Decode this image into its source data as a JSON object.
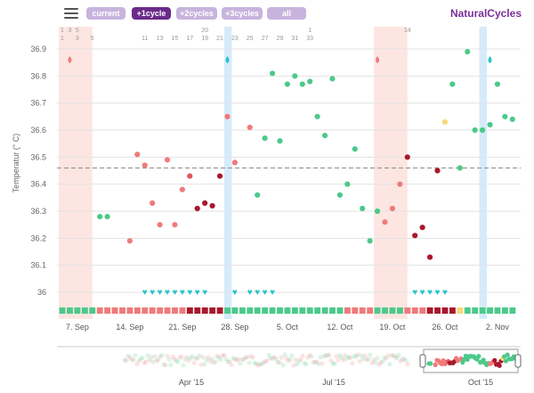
{
  "toolbar": {
    "menu_icon": "hamburger-menu-icon",
    "views": [
      {
        "label": "current",
        "active": false
      },
      {
        "label": "+1cycle",
        "active": true
      },
      {
        "label": "+2cycles",
        "active": false
      },
      {
        "label": "+3cycles",
        "active": false
      },
      {
        "label": "all",
        "active": false
      }
    ],
    "brand": "NaturalCycles"
  },
  "colors": {
    "green": "#4cc98a",
    "red_light": "#f07a7a",
    "red_mid": "#e0555f",
    "red_dark": "#a8182c",
    "teal": "#29c4cc",
    "yellow": "#f5d97a",
    "period_band": "#fde6e2",
    "ovulation_band": "#d6ebfa",
    "brand": "#7a2f9a"
  },
  "chart_data": {
    "type": "scatter",
    "ylabel": "Temperatur (° C)",
    "ylim": [
      35.95,
      36.95
    ],
    "yticks": [
      "36.9",
      "36.8",
      "36.7",
      "36.6",
      "36.5",
      "36.4",
      "36.3",
      "36.2",
      "36.1",
      "36"
    ],
    "threshold": 36.46,
    "day_count": 60,
    "cycle_days_top": [
      "1",
      "3",
      "5",
      "",
      "",
      "",
      "",
      "",
      "",
      "",
      "",
      "",
      "",
      "",
      "",
      "",
      "",
      "",
      "",
      "20",
      "",
      "",
      "",
      "",
      "",
      "",
      "",
      "",
      "",
      "",
      "",
      "",
      "",
      "1",
      "",
      "",
      "",
      "",
      "",
      "",
      "",
      "",
      "",
      "",
      "",
      "",
      "14",
      "",
      "",
      "",
      "",
      "",
      "",
      "",
      "",
      "",
      "",
      ""
    ],
    "cycle_days_row1": [
      "1",
      "",
      "3",
      "",
      "5",
      "",
      "",
      "",
      "",
      "",
      "",
      "11",
      "",
      "13",
      "",
      "15",
      "",
      "17",
      "",
      "19",
      "",
      "21",
      "",
      "23",
      "",
      "25",
      "",
      "27",
      "",
      "29",
      "",
      "31",
      "",
      "33",
      "",
      "",
      "",
      "",
      "",
      "",
      "",
      "",
      "",
      "",
      "",
      "",
      "",
      "",
      "",
      "",
      "",
      "",
      "",
      "",
      "",
      "",
      "",
      "",
      "",
      "",
      "",
      ""
    ],
    "dates": [
      "7. Sep",
      "14. Sep",
      "21. Sep",
      "28. Sep",
      "5. Oct",
      "12. Oct",
      "19. Oct",
      "26. Oct",
      "2. Nov"
    ],
    "period_days": [
      [
        0,
        4
      ],
      [
        42,
        46
      ]
    ],
    "ovulation_days": [
      [
        22,
        23
      ],
      [
        56,
        57
      ]
    ],
    "points": [
      {
        "d": 5,
        "t": 36.28,
        "c": "green"
      },
      {
        "d": 6,
        "t": 36.28,
        "c": "green"
      },
      {
        "d": 9,
        "t": 36.19,
        "c": "red_light"
      },
      {
        "d": 10,
        "t": 36.51,
        "c": "red_light"
      },
      {
        "d": 11,
        "t": 36.47,
        "c": "red_light"
      },
      {
        "d": 12,
        "t": 36.33,
        "c": "red_light"
      },
      {
        "d": 13,
        "t": 36.25,
        "c": "red_light"
      },
      {
        "d": 14,
        "t": 36.49,
        "c": "red_light"
      },
      {
        "d": 15,
        "t": 36.25,
        "c": "red_light"
      },
      {
        "d": 16,
        "t": 36.38,
        "c": "red_light"
      },
      {
        "d": 17,
        "t": 36.43,
        "c": "red_mid"
      },
      {
        "d": 18,
        "t": 36.31,
        "c": "red_dark"
      },
      {
        "d": 19,
        "t": 36.33,
        "c": "red_dark"
      },
      {
        "d": 20,
        "t": 36.32,
        "c": "red_dark"
      },
      {
        "d": 21,
        "t": 36.43,
        "c": "red_dark"
      },
      {
        "d": 22,
        "t": 36.65,
        "c": "red_light"
      },
      {
        "d": 23,
        "t": 36.48,
        "c": "red_light"
      },
      {
        "d": 25,
        "t": 36.61,
        "c": "red_light"
      },
      {
        "d": 26,
        "t": 36.36,
        "c": "green"
      },
      {
        "d": 27,
        "t": 36.57,
        "c": "green"
      },
      {
        "d": 28,
        "t": 36.81,
        "c": "green"
      },
      {
        "d": 29,
        "t": 36.56,
        "c": "green"
      },
      {
        "d": 30,
        "t": 36.77,
        "c": "green"
      },
      {
        "d": 31,
        "t": 36.8,
        "c": "green"
      },
      {
        "d": 32,
        "t": 36.77,
        "c": "green"
      },
      {
        "d": 33,
        "t": 36.78,
        "c": "green"
      },
      {
        "d": 34,
        "t": 36.65,
        "c": "green"
      },
      {
        "d": 35,
        "t": 36.58,
        "c": "green"
      },
      {
        "d": 36,
        "t": 36.79,
        "c": "green"
      },
      {
        "d": 37,
        "t": 36.36,
        "c": "green"
      },
      {
        "d": 38,
        "t": 36.4,
        "c": "green"
      },
      {
        "d": 39,
        "t": 36.53,
        "c": "green"
      },
      {
        "d": 40,
        "t": 36.31,
        "c": "green"
      },
      {
        "d": 41,
        "t": 36.19,
        "c": "green"
      },
      {
        "d": 42,
        "t": 36.3,
        "c": "green"
      },
      {
        "d": 43,
        "t": 36.26,
        "c": "red_light"
      },
      {
        "d": 44,
        "t": 36.31,
        "c": "red_light"
      },
      {
        "d": 45,
        "t": 36.4,
        "c": "red_light"
      },
      {
        "d": 46,
        "t": 36.5,
        "c": "red_dark"
      },
      {
        "d": 47,
        "t": 36.21,
        "c": "red_dark"
      },
      {
        "d": 48,
        "t": 36.24,
        "c": "red_dark"
      },
      {
        "d": 49,
        "t": 36.13,
        "c": "red_dark"
      },
      {
        "d": 50,
        "t": 36.45,
        "c": "red_dark"
      },
      {
        "d": 51,
        "t": 36.63,
        "c": "yellow"
      },
      {
        "d": 52,
        "t": 36.77,
        "c": "green"
      },
      {
        "d": 53,
        "t": 36.46,
        "c": "green"
      },
      {
        "d": 54,
        "t": 36.89,
        "c": "green"
      },
      {
        "d": 55,
        "t": 36.6,
        "c": "green"
      },
      {
        "d": 56,
        "t": 36.6,
        "c": "green"
      },
      {
        "d": 57,
        "t": 36.62,
        "c": "green"
      },
      {
        "d": 58,
        "t": 36.77,
        "c": "green"
      },
      {
        "d": 59,
        "t": 36.65,
        "c": "green"
      },
      {
        "d": 60,
        "t": 36.64,
        "c": "green"
      }
    ],
    "hearts": [
      11,
      12,
      13,
      14,
      15,
      16,
      17,
      18,
      19,
      23,
      25,
      26,
      27,
      28,
      47,
      48,
      49,
      50,
      51
    ],
    "ovulation_drops": [
      {
        "d": 1,
        "c": "red_light"
      },
      {
        "d": 22,
        "c": "teal"
      },
      {
        "d": 42,
        "c": "red_light"
      },
      {
        "d": 57,
        "c": "teal"
      }
    ],
    "day_status": [
      "green",
      "green",
      "green",
      "green",
      "green",
      "red_light",
      "red_light",
      "red_light",
      "red_light",
      "red_light",
      "red_light",
      "red_light",
      "red_light",
      "red_light",
      "red_light",
      "red_light",
      "red_light",
      "red_dark",
      "red_dark",
      "red_dark",
      "red_dark",
      "red_dark",
      "green",
      "green",
      "green",
      "green",
      "green",
      "green",
      "green",
      "green",
      "green",
      "green",
      "green",
      "green",
      "green",
      "green",
      "green",
      "green",
      "red_light",
      "red_light",
      "red_light",
      "red_light",
      "green",
      "green",
      "green",
      "green",
      "red_light",
      "red_light",
      "red_light",
      "red_dark",
      "red_dark",
      "red_dark",
      "red_dark",
      "yellow",
      "green",
      "green",
      "green",
      "green",
      "green",
      "green",
      "green"
    ],
    "overview_labels": [
      "Apr '15",
      "Jul '15",
      "Oct '15"
    ]
  }
}
